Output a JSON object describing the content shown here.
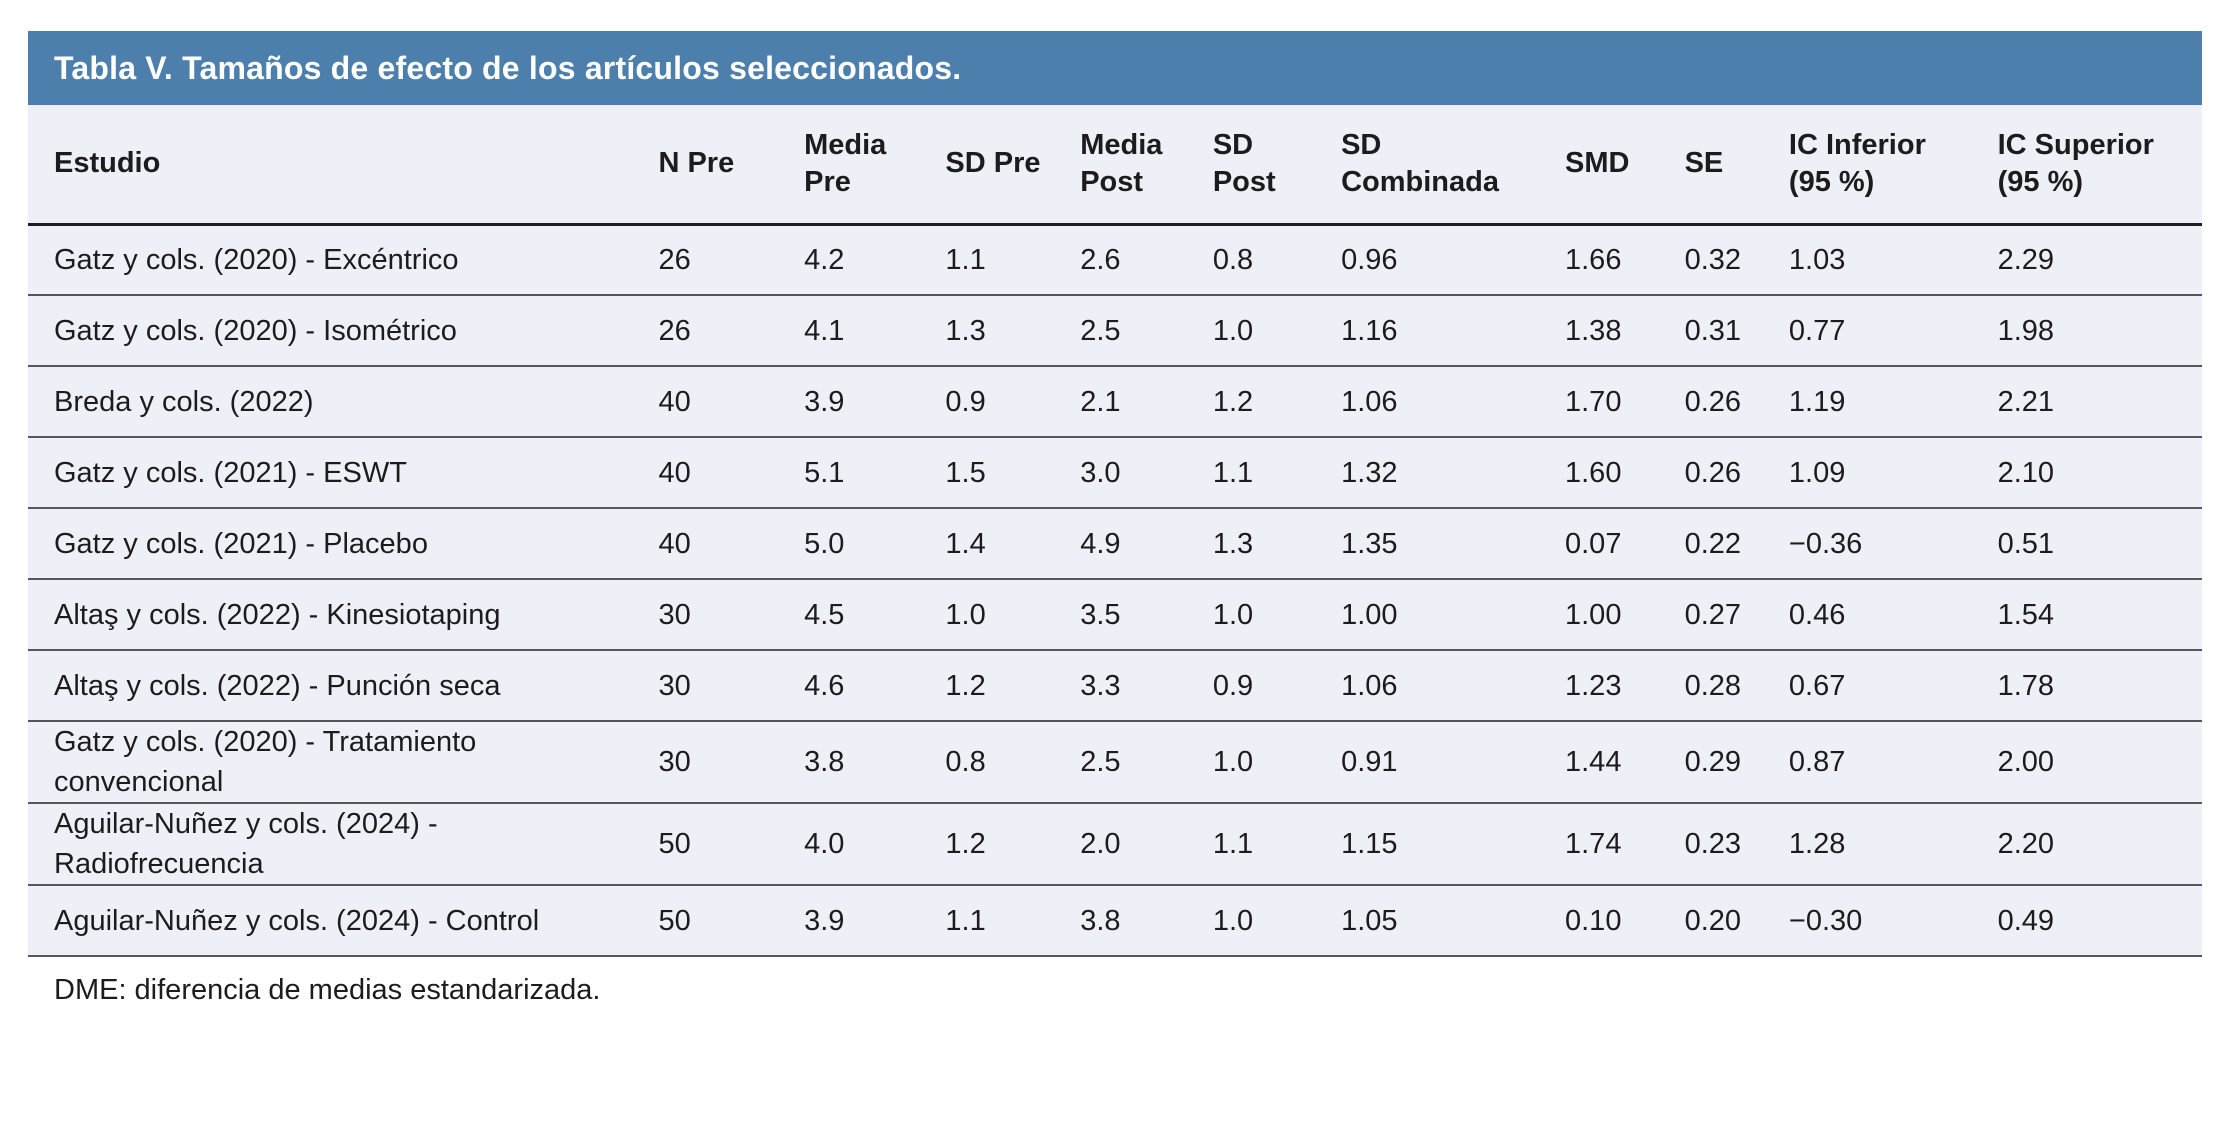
{
  "title": "Tabla V. Tamaños de efecto de los artículos seleccionados.",
  "footnote": "DME: diferencia de medias estandarizada.",
  "colors": {
    "title_bar_bg": "#4d7fac",
    "title_text": "#ffffff",
    "row_bg": "#edf0f7",
    "body_text": "#1c1c1c",
    "header_rule": "#1f1f1f",
    "row_rule": "#565656"
  },
  "table": {
    "columns": [
      "Estudio",
      "N Pre",
      "Media\nPre",
      "SD Pre",
      "Media\nPost",
      "SD\nPost",
      "SD\nCombinada",
      "SMD",
      "SE",
      "IC Inferior\n(95 %)",
      "IC Superior\n(95 %)"
    ],
    "rows": [
      [
        "Gatz y cols. (2020) - Excéntrico",
        "26",
        "4.2",
        "1.1",
        "2.6",
        "0.8",
        "0.96",
        "1.66",
        "0.32",
        "1.03",
        "2.29"
      ],
      [
        "Gatz y cols. (2020) - Isométrico",
        "26",
        "4.1",
        "1.3",
        "2.5",
        "1.0",
        "1.16",
        "1.38",
        "0.31",
        "0.77",
        "1.98"
      ],
      [
        "Breda y cols. (2022)",
        "40",
        "3.9",
        "0.9",
        "2.1",
        "1.2",
        "1.06",
        "1.70",
        "0.26",
        "1.19",
        "2.21"
      ],
      [
        "Gatz y cols. (2021) - ESWT",
        "40",
        "5.1",
        "1.5",
        "3.0",
        "1.1",
        "1.32",
        "1.60",
        "0.26",
        "1.09",
        "2.10"
      ],
      [
        "Gatz y cols. (2021) - Placebo",
        "40",
        "5.0",
        "1.4",
        "4.9",
        "1.3",
        "1.35",
        "0.07",
        "0.22",
        "−0.36",
        "0.51"
      ],
      [
        "Altaş y cols. (2022) - Kinesiotaping",
        "30",
        "4.5",
        "1.0",
        "3.5",
        "1.0",
        "1.00",
        "1.00",
        "0.27",
        "0.46",
        "1.54"
      ],
      [
        "Altaş y cols. (2022) - Punción seca",
        "30",
        "4.6",
        "1.2",
        "3.3",
        "0.9",
        "1.06",
        "1.23",
        "0.28",
        "0.67",
        "1.78"
      ],
      [
        "Gatz y cols. (2020) - Tratamiento convencional",
        "30",
        "3.8",
        "0.8",
        "2.5",
        "1.0",
        "0.91",
        "1.44",
        "0.29",
        "0.87",
        "2.00"
      ],
      [
        "Aguilar-Nuñez y cols. (2024) - Radiofrecuencia",
        "50",
        "4.0",
        "1.2",
        "2.0",
        "1.1",
        "1.15",
        "1.74",
        "0.23",
        "1.28",
        "2.20"
      ],
      [
        "Aguilar-Nuñez y cols. (2024) - Control",
        "50",
        "3.9",
        "1.1",
        "3.8",
        "1.0",
        "1.05",
        "0.10",
        "0.20",
        "−0.30",
        "0.49"
      ]
    ]
  }
}
